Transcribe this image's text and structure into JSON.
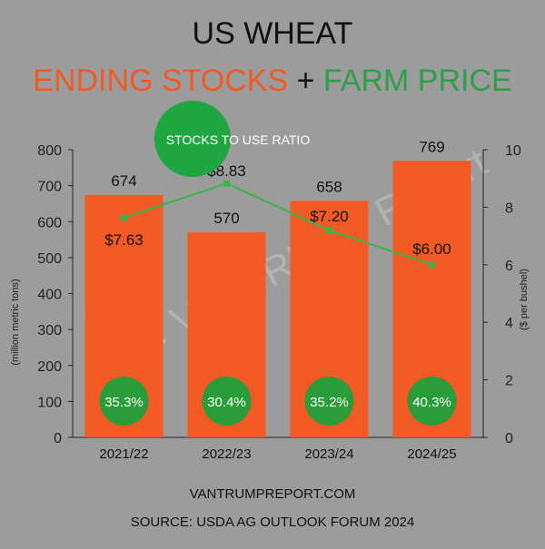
{
  "title": "US WHEAT",
  "subtitle_part1": "ENDING STOCKS",
  "subtitle_plus": "+",
  "subtitle_part2": "FARM PRICE",
  "legend_ratio_label": "STOCKS TO USE RATIO",
  "watermark": "The VANTRUMP Report",
  "footer": {
    "website": "VANTRUMPREPORT.COM",
    "source": "SOURCE: USDA AG OUTLOOK FORUM 2024"
  },
  "colors": {
    "background": "#9c9c9c",
    "bar": "#f15a24",
    "line": "#39b54a",
    "badge": "#2a9d3a",
    "subtitle_orange": "#f15a24",
    "subtitle_green": "#2e9e48"
  },
  "chart_data": {
    "type": "bar",
    "categories": [
      "2021/22",
      "2022/23",
      "2023/24",
      "2024/25"
    ],
    "series": [
      {
        "type": "bar",
        "axis": "left",
        "values": [
          674,
          570,
          658,
          769
        ],
        "value_labels": [
          "674",
          "570",
          "658",
          "769"
        ]
      },
      {
        "type": "line",
        "axis": "right",
        "values": [
          7.63,
          8.83,
          7.2,
          6.0
        ],
        "value_labels": [
          "$7.63",
          "$8.83",
          "$7.20",
          "$6.00"
        ]
      },
      {
        "name": "STOCKS TO USE RATIO",
        "type": "badge",
        "values": [
          35.3,
          30.4,
          35.2,
          40.3
        ],
        "value_labels": [
          "35.3%",
          "30.4%",
          "35.2%",
          "40.3%"
        ]
      }
    ],
    "ylabel_left": "(million metric tons)",
    "ylabel_right": "($ per bushel)",
    "ylim_left": [
      0,
      800
    ],
    "ylim_right": [
      0,
      10
    ],
    "yticks_left": [
      "0",
      "100",
      "200",
      "300",
      "400",
      "500",
      "600",
      "700",
      "800"
    ],
    "yticks_right": [
      "0",
      "2",
      "4",
      "6",
      "8",
      "10"
    ],
    "grid": false
  }
}
